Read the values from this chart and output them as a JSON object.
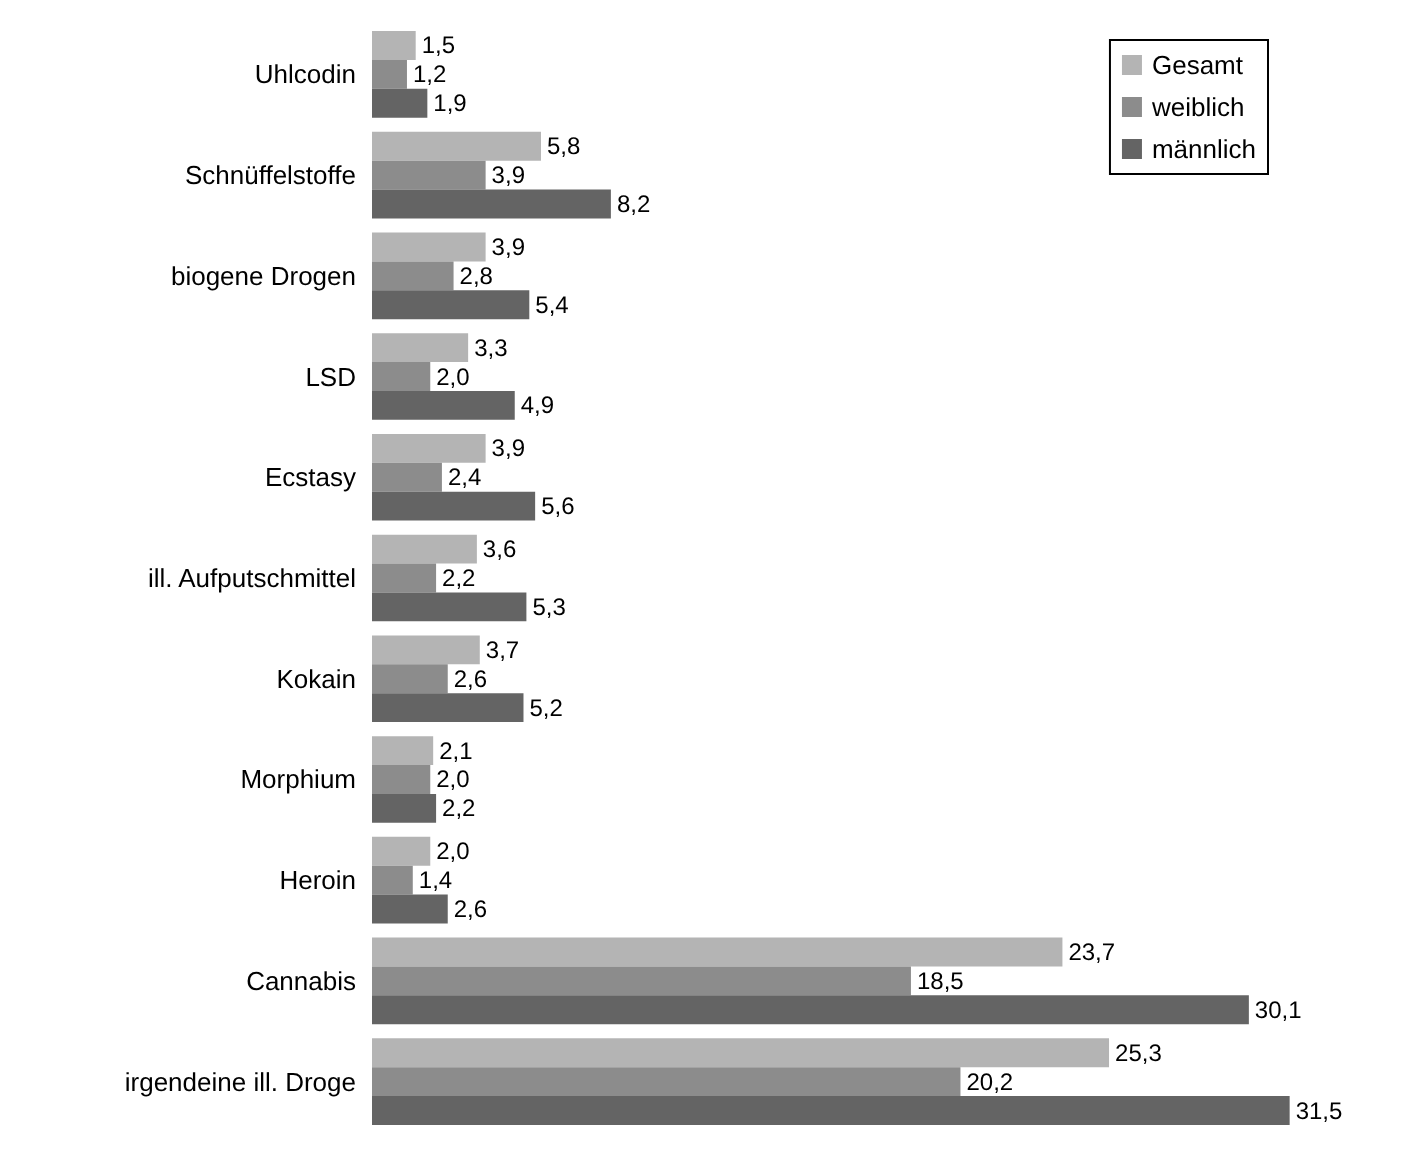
{
  "chart_data": {
    "type": "bar",
    "orientation": "horizontal",
    "legend": "top right",
    "categories": [
      "Uhlcodin",
      "Schnüffelstoffe",
      "biogene Drogen",
      "LSD",
      "Ecstasy",
      "ill. Aufputschmittel",
      "Kokain",
      "Morphium",
      "Heroin",
      "Cannabis",
      "irgendeine ill. Droge"
    ],
    "series": [
      {
        "name": "Gesamt",
        "color": "#b4b4b4",
        "values": [
          1.5,
          5.8,
          3.9,
          3.3,
          3.9,
          3.6,
          3.7,
          2.1,
          2.0,
          23.7,
          25.3
        ],
        "value_labels": [
          "1,5",
          "5,8",
          "3,9",
          "3,3",
          "3,9",
          "3,6",
          "3,7",
          "2,1",
          "2,0",
          "23,7",
          "25,3"
        ]
      },
      {
        "name": "weiblich",
        "color": "#8c8c8c",
        "values": [
          1.2,
          3.9,
          2.8,
          2.0,
          2.4,
          2.2,
          2.6,
          2.0,
          1.4,
          18.5,
          20.2
        ],
        "value_labels": [
          "1,2",
          "3,9",
          "2,8",
          "2,0",
          "2,4",
          "2,2",
          "2,6",
          "2,0",
          "1,4",
          "18,5",
          "20,2"
        ]
      },
      {
        "name": "männlich",
        "color": "#646464",
        "values": [
          1.9,
          8.2,
          5.4,
          4.9,
          5.6,
          5.3,
          5.2,
          2.2,
          2.6,
          30.1,
          31.5
        ],
        "value_labels": [
          "1,9",
          "8,2",
          "5,4",
          "4,9",
          "5,6",
          "5,3",
          "5,2",
          "2,2",
          "2,6",
          "30,1",
          "31,5"
        ]
      }
    ]
  }
}
